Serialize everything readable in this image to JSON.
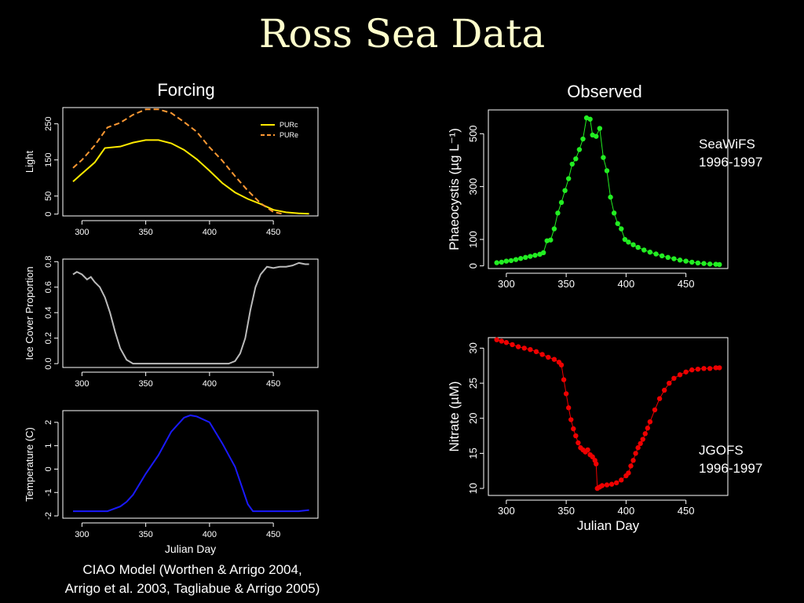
{
  "slide": {
    "title": "Ross Sea Data",
    "forcing_heading": "Forcing",
    "observed_heading": "Observed",
    "caption_line1": "CIAO Model (Worthen & Arrigo 2004,",
    "caption_line2": "Arrigo et al. 2003, Tagliabue & Arrigo 2005)",
    "seawifs_label": "SeaWiFS",
    "seawifs_years": "1996-1997",
    "jgofs_label": "JGOFS",
    "jgofs_years": "1996-1997"
  },
  "chart_data": [
    {
      "id": "light",
      "type": "line",
      "xlabel": "",
      "ylabel": "Light",
      "xlim": [
        285,
        485
      ],
      "ylim": [
        -5,
        295
      ],
      "xticks": [
        300,
        350,
        400,
        450
      ],
      "yticks": [
        0,
        50,
        150,
        250
      ],
      "legend_position": "top-right",
      "series": [
        {
          "name": "PURc",
          "color": "#ffea00",
          "style": "solid",
          "x": [
            293,
            300,
            310,
            318,
            330,
            340,
            350,
            360,
            370,
            380,
            390,
            400,
            410,
            420,
            430,
            440,
            450,
            460,
            470,
            478
          ],
          "y": [
            90,
            112,
            143,
            183,
            187,
            198,
            205,
            205,
            196,
            178,
            152,
            120,
            86,
            60,
            42,
            28,
            12,
            5,
            2,
            1
          ]
        },
        {
          "name": "PURe",
          "color": "#ff9933",
          "style": "dashed",
          "x": [
            293,
            300,
            310,
            320,
            330,
            340,
            350,
            360,
            370,
            380,
            390,
            400,
            410,
            420,
            430,
            440,
            450,
            458
          ],
          "y": [
            128,
            150,
            190,
            240,
            253,
            275,
            290,
            290,
            280,
            255,
            228,
            185,
            148,
            105,
            65,
            30,
            6,
            0
          ]
        }
      ]
    },
    {
      "id": "ice",
      "type": "line",
      "xlabel": "",
      "ylabel": "Ice Cover Proportion",
      "xlim": [
        285,
        485
      ],
      "ylim": [
        -0.03,
        0.82
      ],
      "xticks": [
        300,
        350,
        400,
        450
      ],
      "yticks": [
        0.0,
        0.2,
        0.4,
        0.6,
        0.8
      ],
      "series": [
        {
          "color": "#bbbbbb",
          "x": [
            293,
            296,
            300,
            304,
            307,
            310,
            314,
            318,
            322,
            326,
            330,
            335,
            340,
            345,
            350,
            360,
            380,
            400,
            415,
            420,
            424,
            428,
            432,
            436,
            440,
            445,
            450,
            455,
            460,
            465,
            470,
            475,
            478
          ],
          "y": [
            0.7,
            0.72,
            0.7,
            0.66,
            0.68,
            0.64,
            0.6,
            0.52,
            0.4,
            0.25,
            0.12,
            0.03,
            0.0,
            0.0,
            0.0,
            0.0,
            0.0,
            0.0,
            0.0,
            0.02,
            0.08,
            0.2,
            0.42,
            0.6,
            0.7,
            0.76,
            0.75,
            0.76,
            0.76,
            0.77,
            0.79,
            0.78,
            0.78
          ]
        }
      ]
    },
    {
      "id": "temperature",
      "type": "line",
      "xlabel": "Julian Day",
      "ylabel": "Temperature (C)",
      "xlim": [
        285,
        485
      ],
      "ylim": [
        -2.1,
        2.5
      ],
      "xticks": [
        300,
        350,
        400,
        450
      ],
      "yticks": [
        -2,
        -1,
        0,
        1,
        2
      ],
      "series": [
        {
          "color": "#1a1aff",
          "x": [
            293,
            300,
            310,
            320,
            330,
            335,
            340,
            350,
            360,
            370,
            380,
            385,
            390,
            400,
            410,
            420,
            425,
            430,
            434,
            440,
            450,
            460,
            470,
            478
          ],
          "y": [
            -1.8,
            -1.8,
            -1.8,
            -1.8,
            -1.6,
            -1.4,
            -1.1,
            -0.2,
            0.6,
            1.6,
            2.2,
            2.3,
            2.25,
            2.0,
            1.1,
            0.1,
            -0.7,
            -1.5,
            -1.8,
            -1.8,
            -1.8,
            -1.8,
            -1.8,
            -1.75
          ]
        }
      ]
    },
    {
      "id": "phaeocystis",
      "type": "scatter",
      "xlabel": "",
      "ylabel": "Phaeocystis (µg L⁻¹)",
      "xlim": [
        285,
        485
      ],
      "ylim": [
        -10,
        590
      ],
      "xticks": [
        300,
        350,
        400,
        450
      ],
      "yticks": [
        0,
        100,
        300,
        500
      ],
      "series": [
        {
          "color": "#22ee22",
          "x": [
            292,
            296,
            300,
            304,
            308,
            312,
            316,
            320,
            324,
            328,
            331,
            334,
            337,
            340,
            343,
            346,
            349,
            352,
            355,
            358,
            361,
            364,
            367,
            370,
            372,
            375,
            378,
            381,
            384,
            387,
            390,
            393,
            396,
            399,
            402,
            406,
            410,
            415,
            420,
            425,
            430,
            435,
            440,
            445,
            450,
            455,
            460,
            465,
            470,
            475,
            478
          ],
          "y": [
            12,
            14,
            18,
            20,
            24,
            28,
            32,
            36,
            40,
            44,
            50,
            95,
            98,
            140,
            200,
            240,
            285,
            330,
            385,
            405,
            440,
            480,
            560,
            555,
            495,
            490,
            520,
            410,
            360,
            260,
            200,
            160,
            140,
            100,
            90,
            80,
            70,
            60,
            52,
            45,
            38,
            32,
            27,
            22,
            18,
            14,
            11,
            9,
            7,
            6,
            5
          ]
        }
      ]
    },
    {
      "id": "nitrate",
      "type": "scatter",
      "xlabel": "Julian Day",
      "ylabel": "Nitrate (µM)",
      "xlim": [
        285,
        485
      ],
      "ylim": [
        9,
        31.5
      ],
      "xticks": [
        300,
        350,
        400,
        450
      ],
      "yticks": [
        10,
        15,
        20,
        25,
        30
      ],
      "series": [
        {
          "color": "#ee0000",
          "x": [
            292,
            296,
            300,
            305,
            310,
            315,
            320,
            325,
            330,
            335,
            340,
            344,
            346,
            348,
            350,
            352,
            354,
            356,
            358,
            360,
            362,
            364,
            366,
            368,
            370,
            372,
            374,
            375,
            376,
            378,
            380,
            384,
            388,
            392,
            396,
            400,
            402,
            404,
            406,
            408,
            410,
            412,
            414,
            416,
            418,
            420,
            424,
            428,
            432,
            436,
            440,
            445,
            450,
            455,
            460,
            465,
            470,
            475,
            478
          ],
          "y": [
            31.2,
            31.0,
            30.8,
            30.5,
            30.2,
            30.0,
            29.8,
            29.5,
            29.1,
            28.7,
            28.4,
            28.0,
            27.6,
            25.5,
            23.5,
            21.5,
            19.8,
            18.5,
            17.5,
            16.5,
            15.8,
            15.5,
            15.2,
            15.5,
            14.8,
            14.5,
            14.0,
            13.5,
            10.0,
            10.2,
            10.4,
            10.5,
            10.6,
            10.8,
            11.2,
            11.8,
            12.2,
            13.2,
            14.0,
            15.0,
            15.8,
            16.4,
            17.0,
            17.8,
            18.6,
            19.5,
            21.2,
            22.8,
            24.0,
            25.0,
            25.7,
            26.2,
            26.6,
            26.9,
            27.0,
            27.1,
            27.1,
            27.2,
            27.2
          ]
        }
      ]
    }
  ]
}
